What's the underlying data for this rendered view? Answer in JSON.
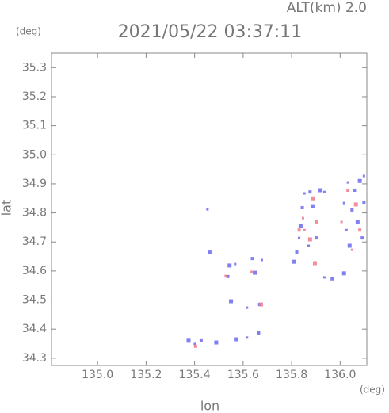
{
  "chart_data": {
    "type": "scatter",
    "title": "2021/05/22 03:37:11",
    "subtitle": "ALT(km) 2.0",
    "y_unit": "(deg)",
    "x_unit": "(deg)",
    "xlabel": "lon",
    "ylabel": "lat",
    "xlim": [
      134.81,
      136.11
    ],
    "ylim": [
      34.275,
      35.35
    ],
    "xticks": [
      {
        "value": 135,
        "label": "135.0"
      },
      135.2,
      135.4,
      135.6,
      135.8,
      {
        "value": 136,
        "label": "136.0"
      }
    ],
    "yticks": [
      34.3,
      34.4,
      34.5,
      34.6,
      34.7,
      34.8,
      34.9,
      {
        "value": 35,
        "label": "35.0"
      },
      35.1,
      35.2,
      35.3
    ],
    "series": [
      {
        "color": "#6a6af0",
        "x": [
          135.453,
          135.463,
          135.544,
          135.567,
          135.537,
          135.55,
          135.616,
          135.668,
          135.648,
          135.677,
          135.638,
          135.57,
          135.616,
          135.664,
          135.375,
          135.401,
          135.427,
          135.489,
          135.853,
          135.876,
          135.919,
          135.935,
          135.844,
          135.837,
          135.831,
          135.821,
          135.811,
          135.87,
          135.902,
          135.886,
          135.935,
          135.967,
          136.016,
          136.032,
          136.059,
          136.081,
          136.098,
          136.049,
          136.072,
          136.026,
          136.091,
          136.039,
          136.016,
          136.098
        ],
        "values": [
          34.812,
          34.665,
          34.619,
          34.624,
          34.581,
          34.496,
          34.474,
          34.485,
          34.594,
          34.638,
          34.643,
          34.365,
          34.371,
          34.387,
          34.36,
          34.349,
          34.36,
          34.354,
          34.867,
          34.872,
          34.878,
          34.872,
          34.818,
          34.755,
          34.714,
          34.665,
          34.632,
          34.687,
          34.714,
          34.823,
          34.578,
          34.573,
          34.592,
          34.905,
          34.878,
          34.91,
          34.927,
          34.81,
          34.769,
          34.741,
          34.714,
          34.687,
          34.834,
          34.837
        ]
      },
      {
        "color": "#f07a8a",
        "x": [
          135.528,
          135.404,
          135.896,
          135.853,
          135.831,
          135.876,
          135.847,
          135.902,
          135.889,
          136.049,
          136.032,
          136.065,
          136.006,
          136.081,
          135.674,
          135.635
        ],
        "values": [
          34.583,
          34.341,
          34.627,
          34.741,
          34.741,
          34.709,
          34.782,
          34.769,
          34.85,
          34.673,
          34.878,
          34.829,
          34.769,
          34.741,
          34.485,
          34.597
        ]
      }
    ]
  }
}
